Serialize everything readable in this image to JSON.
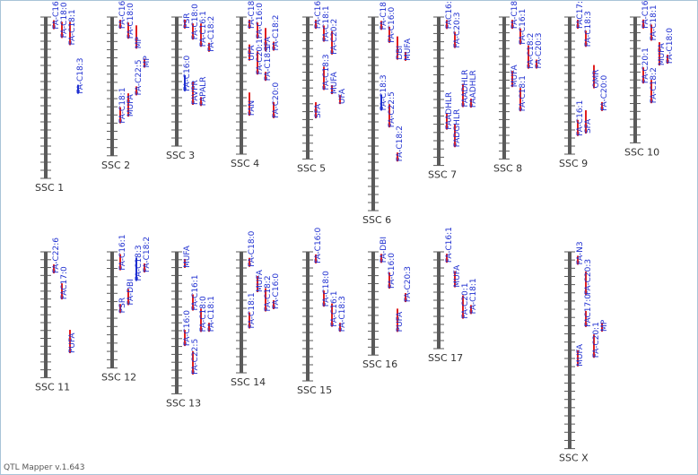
{
  "app": {
    "version_label": "QTL Mapper v.1.643"
  },
  "colors": {
    "chromosome": "#5a5a5a",
    "qtl_red": "#e02020",
    "qtl_blue": "#1f2fd0",
    "label": "#1f2fd0"
  },
  "chromosomes": [
    {
      "label": "SSC 1",
      "length": 1.0,
      "qtls": [
        {
          "t": "FA-C16:0",
          "p": 0.02,
          "c": "r"
        },
        {
          "t": "FA-C18:0",
          "p": 0.03,
          "c": "r"
        },
        {
          "t": "FA-C18:1",
          "p": 0.03,
          "c": "r"
        },
        {
          "t": "FA-C18:3",
          "p": 0.42,
          "c": "b"
        }
      ]
    },
    {
      "label": "SSC 2",
      "length": 0.86,
      "qtls": [
        {
          "t": "FA-C16:1",
          "p": 0.02,
          "c": "r"
        },
        {
          "t": "FA-C18:0",
          "p": 0.04,
          "c": "r"
        },
        {
          "t": "MP",
          "p": 0.06,
          "c": "r"
        },
        {
          "t": "MP",
          "p": 0.3,
          "c": "r"
        },
        {
          "t": "FA-C18:1",
          "p": 0.65,
          "c": "r"
        },
        {
          "t": "MUFA",
          "p": 0.55,
          "c": "r"
        },
        {
          "t": "FA-C22:5",
          "p": 0.5,
          "c": "r"
        }
      ]
    },
    {
      "label": "SSC 3",
      "length": 0.8,
      "qtls": [
        {
          "t": "PSR",
          "p": 0.02,
          "c": "r"
        },
        {
          "t": "FA-C18:0",
          "p": 0.05,
          "c": "r"
        },
        {
          "t": "FA-C16:1",
          "p": 0.05,
          "c": "r"
        },
        {
          "t": "FA-C18:2",
          "p": 0.2,
          "c": "r"
        },
        {
          "t": "FA-C16:0",
          "p": 0.45,
          "c": "b"
        },
        {
          "t": "FAVPR",
          "p": 0.5,
          "c": "r"
        },
        {
          "t": "FAPALR",
          "p": 0.62,
          "c": "r"
        }
      ]
    },
    {
      "label": "SSC 4",
      "length": 0.85,
      "qtls": [
        {
          "t": "FA-C18:1",
          "p": 0.02,
          "c": "r"
        },
        {
          "t": "FA-C16:0",
          "p": 0.04,
          "c": "r"
        },
        {
          "t": "SFA",
          "p": 0.08,
          "c": "r"
        },
        {
          "t": "FA-C18:2",
          "p": 0.18,
          "c": "r"
        },
        {
          "t": "UFA",
          "p": 0.2,
          "c": "r"
        },
        {
          "t": "FA-C20:1",
          "p": 0.25,
          "c": "r"
        },
        {
          "t": "FA-C18:1",
          "p": 0.4,
          "c": "r"
        },
        {
          "t": "FA-C20:0",
          "p": 0.62,
          "c": "r"
        },
        {
          "t": "FAN",
          "p": 0.55,
          "c": "r"
        }
      ]
    },
    {
      "label": "SSC 5",
      "length": 0.88,
      "qtls": [
        {
          "t": "FA-C16:0",
          "p": 0.02,
          "c": "r"
        },
        {
          "t": "FA-C18:1",
          "p": 0.06,
          "c": "r"
        },
        {
          "t": "FA-C20:2",
          "p": 0.1,
          "c": "r"
        },
        {
          "t": "UFA",
          "p": 0.55,
          "c": "r"
        },
        {
          "t": "SFA",
          "p": 0.6,
          "c": "r"
        },
        {
          "t": "FA-C18:3",
          "p": 0.35,
          "c": "r"
        },
        {
          "t": "MUFA",
          "p": 0.48,
          "c": "r"
        }
      ]
    },
    {
      "label": "SSC 6",
      "length": 1.2,
      "qtls": [
        {
          "t": "FA-C18:0",
          "p": 0.02,
          "c": "r"
        },
        {
          "t": "FA-C16:0",
          "p": 0.05,
          "c": "r"
        },
        {
          "t": "DBI",
          "p": 0.1,
          "c": "r"
        },
        {
          "t": "MUFA",
          "p": 0.18,
          "c": "r"
        },
        {
          "t": "FA-C18:3",
          "p": 0.4,
          "c": "b"
        },
        {
          "t": "FA-C22:5",
          "p": 0.45,
          "c": "r"
        },
        {
          "t": "FA-C18:2",
          "p": 0.7,
          "c": "r"
        }
      ]
    },
    {
      "label": "SSC 7",
      "length": 0.92,
      "qtls": [
        {
          "t": "FAC16:1",
          "p": 0.02,
          "c": "r"
        },
        {
          "t": "FA-C20:3",
          "p": 0.1,
          "c": "r"
        },
        {
          "t": "FAADHLR",
          "p": 0.45,
          "c": "r"
        },
        {
          "t": "FAADHLR",
          "p": 0.55,
          "c": "r"
        },
        {
          "t": "FAADHLR",
          "p": 0.65,
          "c": "r"
        },
        {
          "t": "FADGHLR",
          "p": 0.72,
          "c": "r"
        }
      ]
    },
    {
      "label": "SSC 8",
      "length": 0.88,
      "qtls": [
        {
          "t": "FA-C18:1",
          "p": 0.02,
          "c": "r"
        },
        {
          "t": "FA-C16:1",
          "p": 0.08,
          "c": "r"
        },
        {
          "t": "FA-C18:2",
          "p": 0.2,
          "c": "r"
        },
        {
          "t": "FA-C20:3",
          "p": 0.3,
          "c": "r"
        },
        {
          "t": "MUFA",
          "p": 0.38,
          "c": "r"
        },
        {
          "t": "FA-C18:1",
          "p": 0.5,
          "c": "r"
        }
      ]
    },
    {
      "label": "SSC 9",
      "length": 0.85,
      "qtls": [
        {
          "t": "FAC17:0",
          "p": 0.02,
          "c": "r"
        },
        {
          "t": "FA-C18:3",
          "p": 0.1,
          "c": "r"
        },
        {
          "t": "OMR",
          "p": 0.35,
          "c": "r"
        },
        {
          "t": "FA-C20:0",
          "p": 0.62,
          "c": "r"
        },
        {
          "t": "FA-C16:1",
          "p": 0.75,
          "c": "r"
        },
        {
          "t": "SFA",
          "p": 0.68,
          "c": "r"
        }
      ]
    },
    {
      "label": "SSC 10",
      "length": 0.78,
      "qtls": [
        {
          "t": "FA-C16:0",
          "p": 0.02,
          "c": "r"
        },
        {
          "t": "FA-C18:1",
          "p": 0.06,
          "c": "r"
        },
        {
          "t": "MUFA",
          "p": 0.2,
          "c": "r"
        },
        {
          "t": "FA-C18:0",
          "p": 0.3,
          "c": "r"
        },
        {
          "t": "FA-C20:1",
          "p": 0.4,
          "c": "r"
        },
        {
          "t": "FA-C18:2",
          "p": 0.5,
          "c": "r"
        }
      ]
    },
    {
      "label": "SSC 11",
      "length": 0.78,
      "qtls": [
        {
          "t": "FA-C22:6",
          "p": 0.1,
          "c": "r"
        },
        {
          "t": "FAC17:0",
          "p": 0.25,
          "c": "r"
        },
        {
          "t": "PUFA",
          "p": 0.62,
          "c": "r"
        }
      ]
    },
    {
      "label": "SSC 12",
      "length": 0.72,
      "qtls": [
        {
          "t": "PSR",
          "p": 0.45,
          "c": "r"
        },
        {
          "t": "FA-DBI",
          "p": 0.32,
          "c": "r"
        },
        {
          "t": "FA-C18:3",
          "p": 0.05,
          "c": "b"
        },
        {
          "t": "FA-C18:2",
          "p": 0.1,
          "c": "r"
        },
        {
          "t": "FA-C16:1",
          "p": 0.02,
          "c": "r"
        }
      ]
    },
    {
      "label": "SSC 13",
      "length": 0.88,
      "qtls": [
        {
          "t": "MUFA",
          "p": 0.05,
          "c": "r"
        },
        {
          "t": "FA-C16:1",
          "p": 0.3,
          "c": "r"
        },
        {
          "t": "FA-C18:0",
          "p": 0.4,
          "c": "r"
        },
        {
          "t": "FA-C18:1",
          "p": 0.5,
          "c": "r"
        },
        {
          "t": "FA-C16:0",
          "p": 0.55,
          "c": "r"
        },
        {
          "t": "FA-C22:5",
          "p": 0.7,
          "c": "r"
        }
      ]
    },
    {
      "label": "SSC 14",
      "length": 0.75,
      "qtls": [
        {
          "t": "FA-C18:0",
          "p": 0.05,
          "c": "r"
        },
        {
          "t": "MUFA",
          "p": 0.2,
          "c": "r"
        },
        {
          "t": "FA-C18:2",
          "p": 0.3,
          "c": "r"
        },
        {
          "t": "FA-C16:0",
          "p": 0.4,
          "c": "r"
        },
        {
          "t": "FA-C18:1",
          "p": 0.5,
          "c": "r"
        }
      ]
    },
    {
      "label": "SSC 15",
      "length": 0.8,
      "qtls": [
        {
          "t": "FA-C16:0",
          "p": 0.02,
          "c": "r"
        },
        {
          "t": "FA-C18:0",
          "p": 0.3,
          "c": "r"
        },
        {
          "t": "FA-C16:1",
          "p": 0.4,
          "c": "r"
        },
        {
          "t": "FA-C18:3",
          "p": 0.55,
          "c": "r"
        }
      ]
    },
    {
      "label": "SSC 16",
      "length": 0.64,
      "qtls": [
        {
          "t": "FA-DBI",
          "p": 0.02,
          "c": "r"
        },
        {
          "t": "FA-C16:0",
          "p": 0.2,
          "c": "r"
        },
        {
          "t": "PUFA",
          "p": 0.55,
          "c": "r"
        },
        {
          "t": "FA-C20:3",
          "p": 0.4,
          "c": "r"
        }
      ]
    },
    {
      "label": "SSC 17",
      "length": 0.6,
      "qtls": [
        {
          "t": "FA-C16:1",
          "p": 0.02,
          "c": "r"
        },
        {
          "t": "MUFA",
          "p": 0.2,
          "c": "r"
        },
        {
          "t": "FA-C20:1",
          "p": 0.45,
          "c": "r"
        },
        {
          "t": "FA-C18:1",
          "p": 0.55,
          "c": "r"
        }
      ]
    },
    {
      "label": "SSC X",
      "length": 1.22,
      "qtls": [
        {
          "t": "FA-N3",
          "p": 0.02,
          "c": "r"
        },
        {
          "t": "FAC17:0",
          "p": 0.3,
          "c": "r"
        },
        {
          "t": "FA-C20:1",
          "p": 0.42,
          "c": "r"
        },
        {
          "t": "MP",
          "p": 0.36,
          "c": "r"
        },
        {
          "t": "MUFA",
          "p": 0.5,
          "c": "r"
        },
        {
          "t": "FA-C20:3",
          "p": 0.1,
          "c": "r"
        }
      ]
    }
  ]
}
